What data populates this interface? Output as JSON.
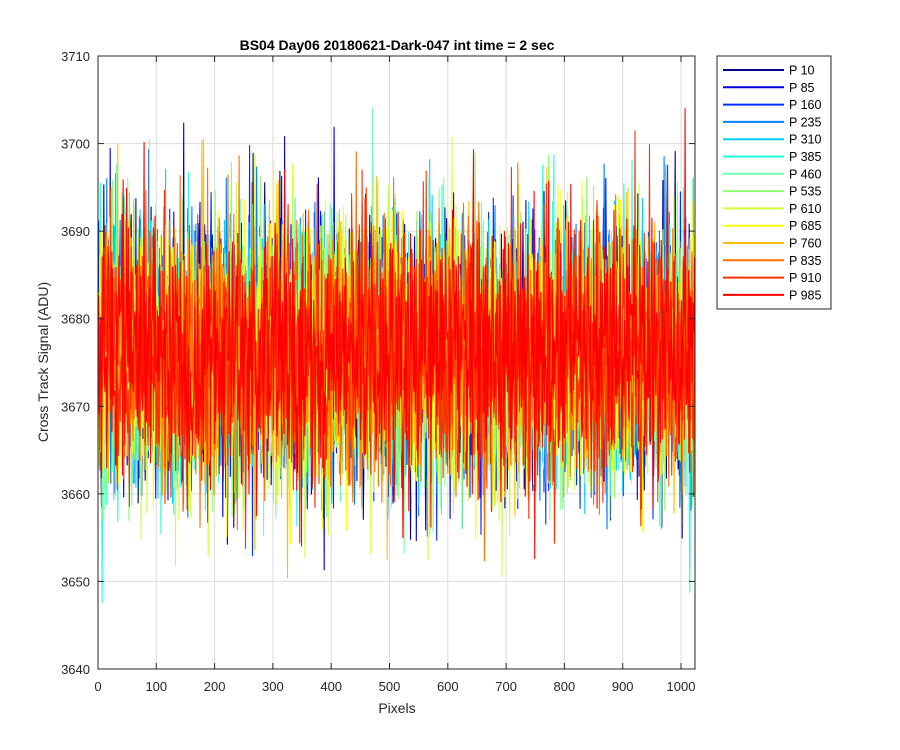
{
  "chart_data": {
    "type": "line",
    "title": "BS04 Day06 20180621-Dark-047 int time = 2 sec",
    "xlabel": "Pixels",
    "ylabel": "Cross Track Signal (ADU)",
    "xlim": [
      0,
      1024
    ],
    "ylim": [
      3640,
      3710
    ],
    "xticks": [
      0,
      100,
      200,
      300,
      400,
      500,
      600,
      700,
      800,
      900,
      1000
    ],
    "yticks": [
      3640,
      3650,
      3660,
      3670,
      3680,
      3690,
      3700,
      3710
    ],
    "grid": true,
    "legend_position": "outside-top-right",
    "noise_model": {
      "mean": 3676,
      "std": 7.5,
      "min": 3644,
      "max": 3704,
      "points_per_series": 1024
    },
    "series": [
      {
        "name": "P 10",
        "color": "#00008f"
      },
      {
        "name": "P 85",
        "color": "#0000df"
      },
      {
        "name": "P 160",
        "color": "#0030ff"
      },
      {
        "name": "P 235",
        "color": "#0080ff"
      },
      {
        "name": "P 310",
        "color": "#00cfff"
      },
      {
        "name": "P 385",
        "color": "#20ffdf"
      },
      {
        "name": "P 460",
        "color": "#70ffaf"
      },
      {
        "name": "P 535",
        "color": "#8fff70"
      },
      {
        "name": "P 610",
        "color": "#cfff30"
      },
      {
        "name": "P 685",
        "color": "#ffff00"
      },
      {
        "name": "P 760",
        "color": "#ffbf00"
      },
      {
        "name": "P 835",
        "color": "#ff7000"
      },
      {
        "name": "P 910",
        "color": "#ff3000"
      },
      {
        "name": "P 985",
        "color": "#ff0000"
      }
    ]
  }
}
